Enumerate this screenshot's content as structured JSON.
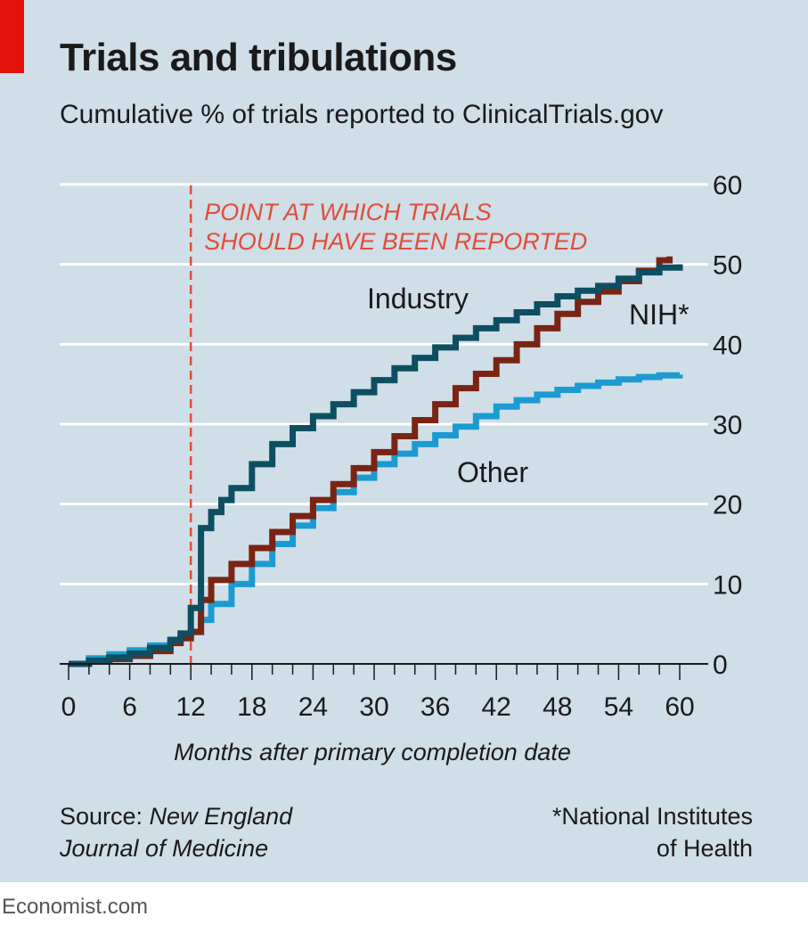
{
  "header": {
    "title": "Trials and tribulations",
    "subtitle": "Cumulative % of trials reported to ClinicalTrials.gov"
  },
  "footer": {
    "source_prefix": "Source: ",
    "source_line1": "New England",
    "source_line2": "Journal of Medicine",
    "note_line1": "*National Institutes",
    "note_line2": "of Health",
    "brand": "Economist.com"
  },
  "colors": {
    "industry": "#0d4f61",
    "nih": "#7a2413",
    "other": "#1b9bd1",
    "annotation": "#e04e39",
    "background": "#cfdee7",
    "brand_red": "#e3120b"
  },
  "chart_data": {
    "type": "line",
    "step": true,
    "xlabel": "Months after primary completion date",
    "ylabel": "",
    "xlim": [
      0,
      60
    ],
    "ylim": [
      0,
      60
    ],
    "xticks": [
      0,
      6,
      12,
      18,
      24,
      30,
      36,
      42,
      48,
      54,
      60
    ],
    "yticks": [
      0,
      10,
      20,
      30,
      40,
      50,
      60
    ],
    "y_axis_side": "right",
    "grid": "horizontal",
    "annotation": {
      "x": 12,
      "line1": "POINT AT WHICH TRIALS",
      "line2": "SHOULD HAVE BEEN REPORTED"
    },
    "series": [
      {
        "name": "Industry",
        "label": "Industry",
        "colorKey": "industry",
        "x": [
          0,
          2,
          4,
          6,
          8,
          10,
          11,
          12,
          13,
          14,
          15,
          16,
          18,
          20,
          22,
          24,
          26,
          28,
          30,
          32,
          34,
          36,
          38,
          40,
          42,
          44,
          46,
          48,
          50,
          52,
          54,
          56,
          58,
          60
        ],
        "y": [
          0,
          0.4,
          0.8,
          1.3,
          2.0,
          3.0,
          3.8,
          7.0,
          17.0,
          19.0,
          20.5,
          22.0,
          25.0,
          27.5,
          29.5,
          31.0,
          32.5,
          34.0,
          35.5,
          37.0,
          38.3,
          39.6,
          40.8,
          42.0,
          43.0,
          44.0,
          45.0,
          46.0,
          46.7,
          47.3,
          48.2,
          49.0,
          49.6,
          50.0
        ]
      },
      {
        "name": "NIH*",
        "label": "NIH*",
        "colorKey": "nih",
        "x": [
          0,
          2,
          4,
          6,
          8,
          10,
          11,
          12,
          13,
          14,
          16,
          18,
          20,
          22,
          24,
          26,
          28,
          30,
          32,
          34,
          36,
          38,
          40,
          42,
          44,
          46,
          48,
          50,
          52,
          54,
          56,
          58,
          59
        ],
        "y": [
          0,
          0.3,
          0.6,
          1.0,
          1.6,
          2.6,
          3.2,
          4.0,
          8.0,
          10.5,
          12.5,
          14.5,
          16.5,
          18.5,
          20.5,
          22.5,
          24.5,
          26.5,
          28.5,
          30.5,
          32.5,
          34.5,
          36.3,
          38.0,
          40.0,
          42.0,
          43.8,
          45.3,
          46.6,
          47.9,
          49.2,
          50.5,
          51.0
        ]
      },
      {
        "name": "Other",
        "label": "Other",
        "colorKey": "other",
        "x": [
          0,
          2,
          4,
          6,
          8,
          10,
          11,
          12,
          13,
          14,
          16,
          18,
          20,
          22,
          24,
          26,
          28,
          30,
          32,
          34,
          36,
          38,
          40,
          42,
          44,
          46,
          48,
          50,
          52,
          54,
          56,
          58,
          60
        ],
        "y": [
          0,
          0.7,
          1.2,
          1.7,
          2.3,
          3.0,
          3.5,
          4.0,
          5.5,
          7.5,
          10.0,
          12.5,
          15.0,
          17.3,
          19.5,
          21.5,
          23.3,
          25.0,
          26.3,
          27.5,
          28.6,
          29.7,
          31.0,
          32.2,
          33.0,
          33.7,
          34.3,
          34.8,
          35.2,
          35.6,
          35.9,
          36.1,
          36.2
        ]
      }
    ]
  }
}
